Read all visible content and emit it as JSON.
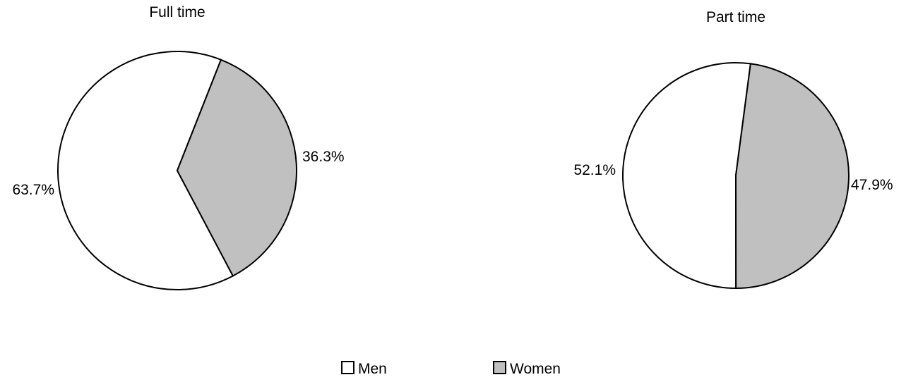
{
  "chart_data": [
    {
      "type": "pie",
      "title": "Full time",
      "series": [
        {
          "name": "Men",
          "value": 63.7,
          "label": "63.7%"
        },
        {
          "name": "Women",
          "value": 36.3,
          "label": "36.3%"
        }
      ]
    },
    {
      "type": "pie",
      "title": "Part time",
      "series": [
        {
          "name": "Men",
          "value": 52.1,
          "label": "52.1%"
        },
        {
          "name": "Women",
          "value": 47.9,
          "label": "47.9%"
        }
      ]
    }
  ],
  "legend": {
    "placement": "bottom",
    "items": [
      {
        "label": "Men",
        "color": "#ffffff"
      },
      {
        "label": "Women",
        "color": "#c0c0c0"
      }
    ]
  },
  "colors": {
    "men": "#ffffff",
    "women": "#c0c0c0",
    "stroke": "#000000"
  }
}
